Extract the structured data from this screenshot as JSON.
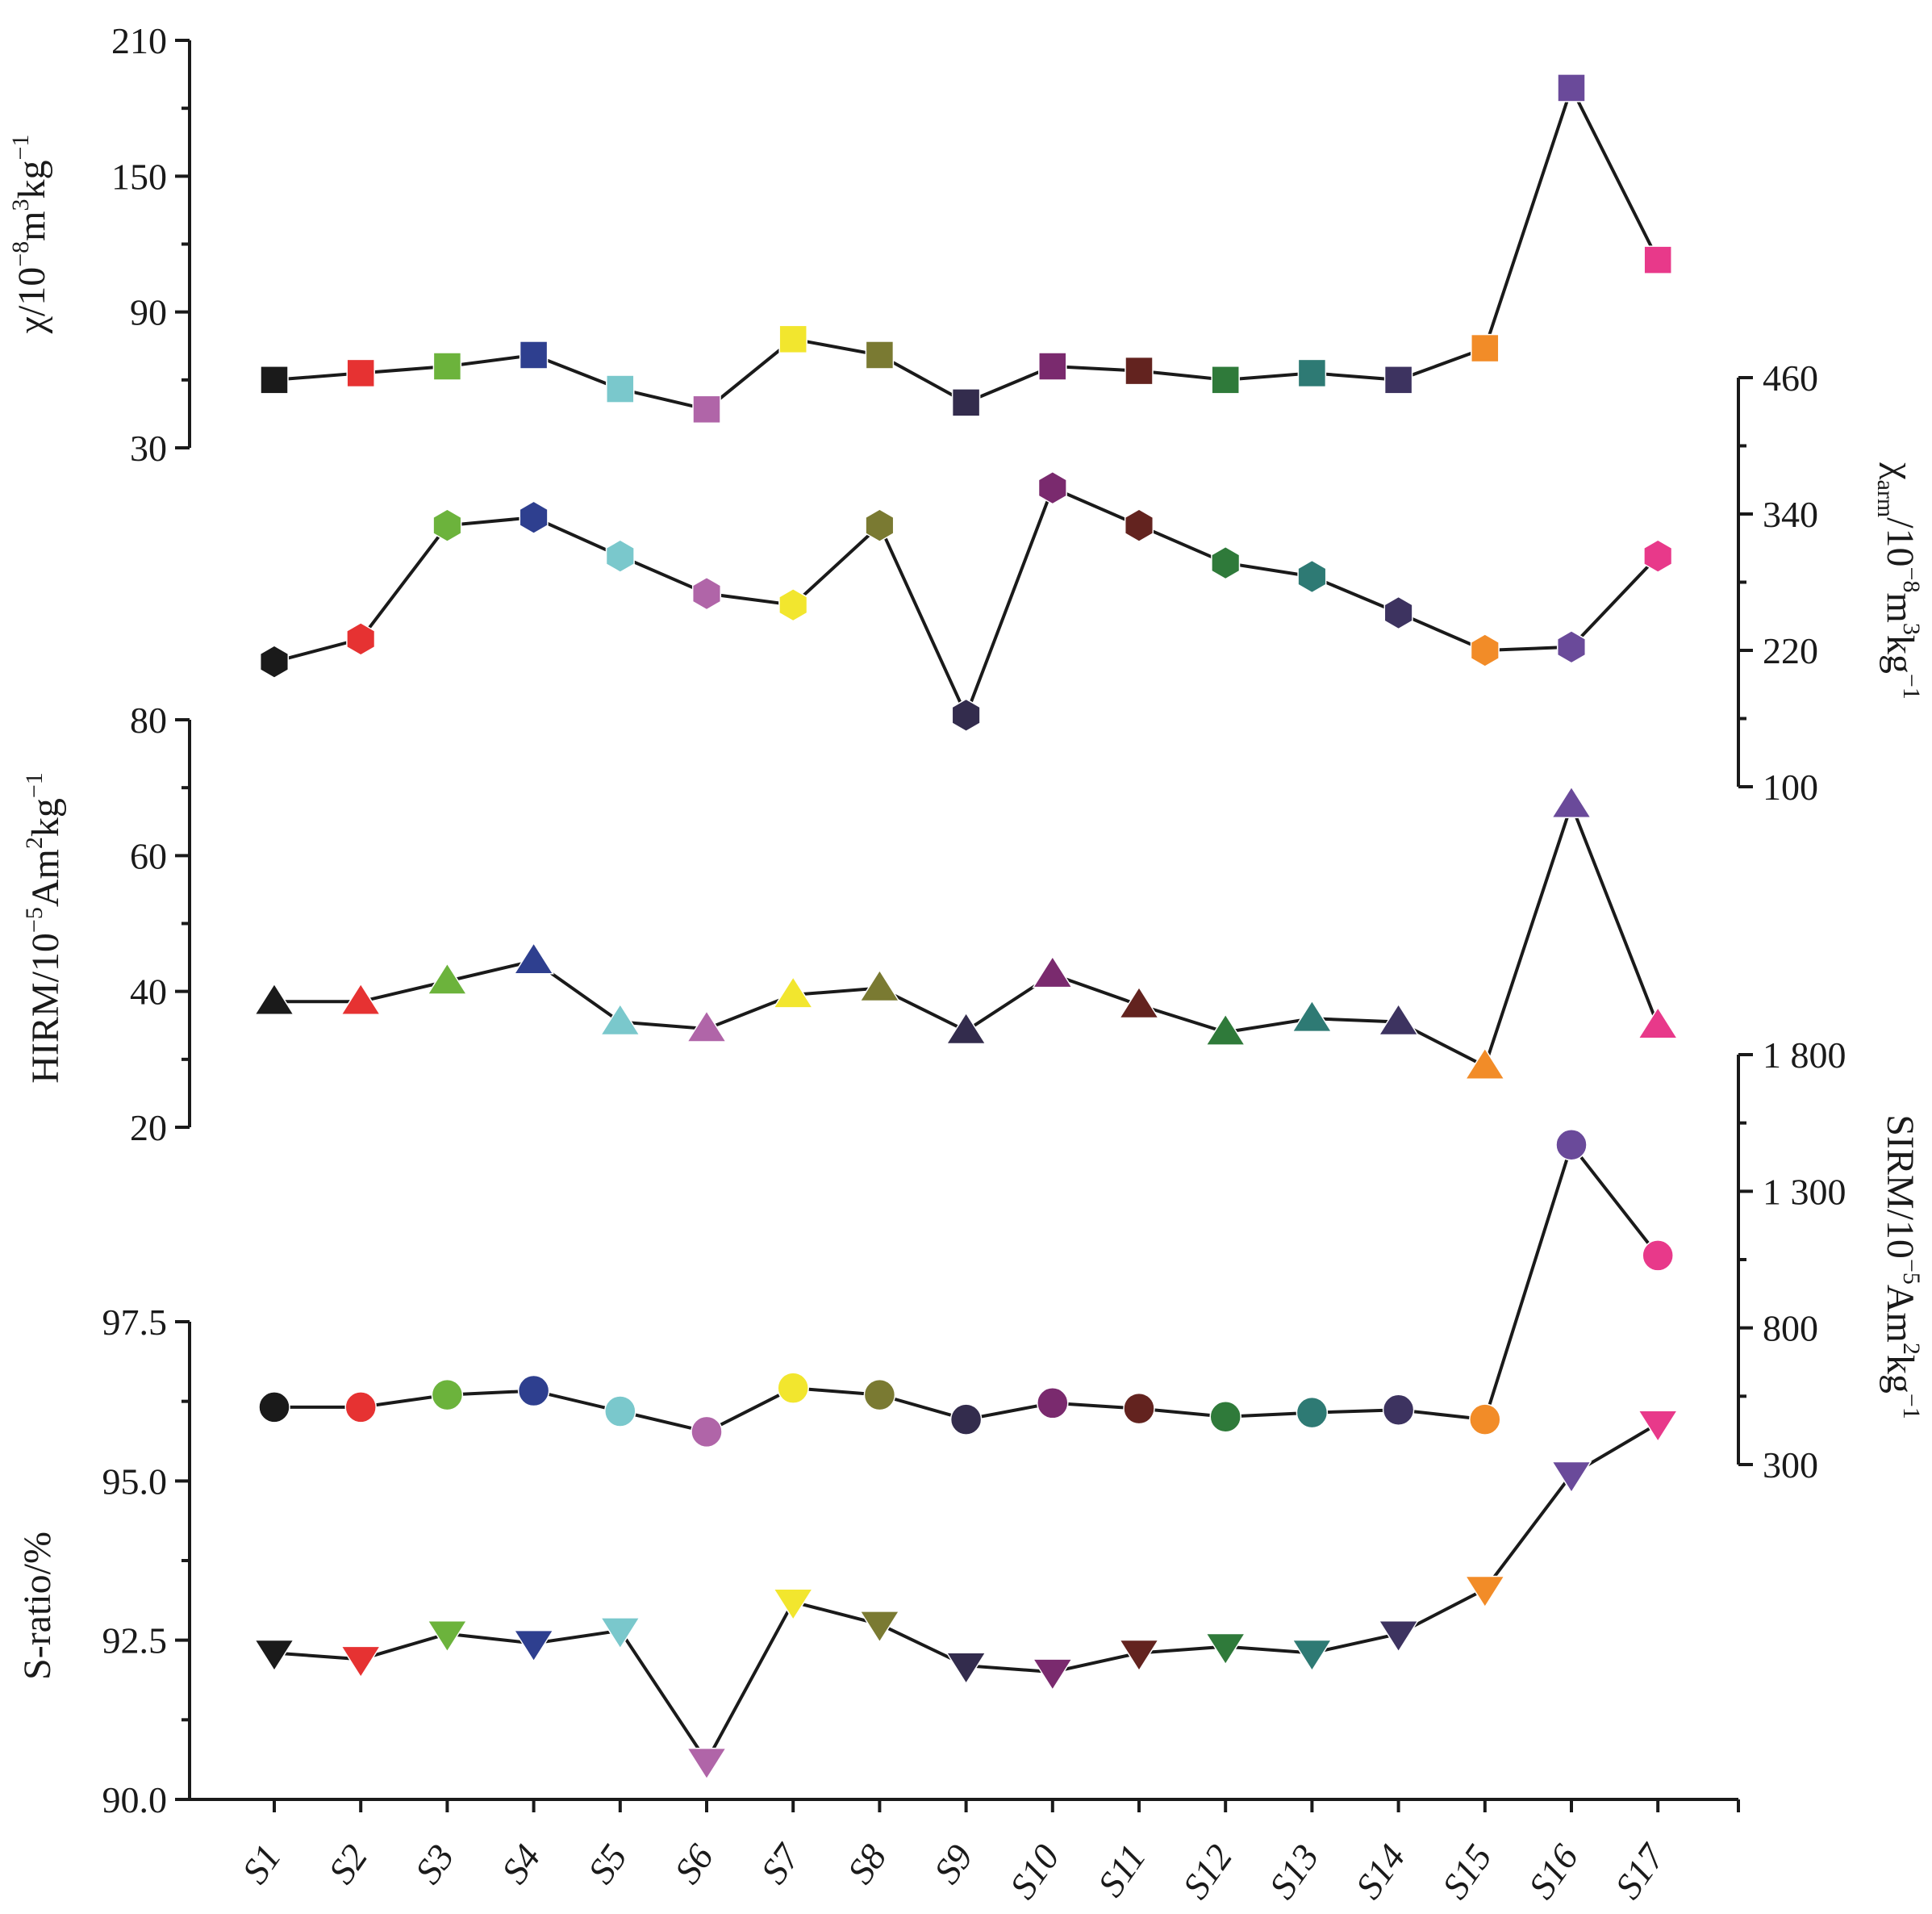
{
  "chart_data": {
    "type": "scatter",
    "categories": [
      "S1",
      "S2",
      "S3",
      "S4",
      "S5",
      "S6",
      "S7",
      "S8",
      "S9",
      "S10",
      "S11",
      "S12",
      "S13",
      "S14",
      "S15",
      "S16",
      "S17"
    ],
    "point_colors": [
      "#1a1a1a",
      "#e63232",
      "#6cb33c",
      "#2e3f8f",
      "#7ac8cc",
      "#b065a8",
      "#f2e62e",
      "#7a7a32",
      "#332c4d",
      "#7a2a6e",
      "#63231f",
      "#2f7a3a",
      "#2e7a74",
      "#3d3360",
      "#f28c28",
      "#6a4a9a",
      "#e8398a"
    ],
    "series": [
      {
        "key": "chi",
        "name": "χ",
        "axis_title": {
          "main": "χ/10",
          "sup1": "−8",
          "mid": "m",
          "sup2": "3",
          "end": "kg",
          "sup3": "−1"
        },
        "axis_side": "left",
        "ylim": [
          30,
          210
        ],
        "ticks": [
          30,
          90,
          150,
          210
        ],
        "tick_labels": [
          "30",
          "90",
          "150",
          "210"
        ],
        "marker": "square",
        "values": [
          60,
          63,
          66,
          71,
          56,
          47,
          78,
          71,
          50,
          66,
          64,
          60,
          63,
          60,
          74,
          189,
          113
        ]
      },
      {
        "key": "chiarm",
        "name": "χarm",
        "axis_title": {
          "main": "χ",
          "sub": "arm",
          "mid": "/10",
          "sup1": "−8",
          "mid2": "m",
          "sup2": "3",
          "end": "kg",
          "sup3": "−1"
        },
        "axis_side": "right",
        "ylim": [
          100,
          460
        ],
        "ticks": [
          100,
          220,
          340,
          460
        ],
        "tick_labels": [
          "100",
          "220",
          "340",
          "460"
        ],
        "marker": "hexagon",
        "values": [
          210,
          230,
          330,
          337,
          303,
          270,
          260,
          330,
          163,
          363,
          330,
          297,
          285,
          253,
          220,
          223,
          303
        ]
      },
      {
        "key": "hirm",
        "name": "HIRM",
        "axis_title": {
          "main": "HIRM/10",
          "sup1": "−5",
          "mid": "Am",
          "sup2": "2",
          "end": "kg",
          "sup3": "−1"
        },
        "axis_side": "left",
        "ylim": [
          20,
          80
        ],
        "ticks": [
          20,
          40,
          60,
          80
        ],
        "tick_labels": [
          "20",
          "40",
          "60",
          "80"
        ],
        "marker": "triangle-up",
        "values": [
          38.5,
          38.5,
          41.5,
          44.5,
          35.5,
          34.5,
          39.5,
          40.5,
          34.2,
          42.5,
          38,
          34,
          36,
          35.5,
          29,
          67.5,
          35
        ]
      },
      {
        "key": "sirm",
        "name": "SIRM",
        "axis_title": {
          "main": "SIRM/10",
          "sup1": "−5",
          "mid": "Am",
          "sup2": "2",
          "end": "kg",
          "sup3": "−1"
        },
        "axis_side": "right",
        "ylim": [
          300,
          1800
        ],
        "ticks": [
          300,
          800,
          1300,
          1800
        ],
        "tick_labels": [
          "300",
          "800",
          "1 300",
          "1 800"
        ],
        "marker": "circle",
        "values": [
          510,
          510,
          555,
          570,
          495,
          420,
          580,
          555,
          465,
          525,
          505,
          475,
          490,
          500,
          465,
          1470,
          1065
        ]
      },
      {
        "key": "sratio",
        "name": "S-ratio",
        "axis_title": {
          "main": "S-ratio/%"
        },
        "axis_side": "left",
        "ylim": [
          90.0,
          97.5
        ],
        "ticks": [
          90.0,
          92.5,
          95.0,
          97.5
        ],
        "tick_labels": [
          "90.0",
          "92.5",
          "95.0",
          "97.5"
        ],
        "marker": "triangle-down",
        "values": [
          92.3,
          92.2,
          92.6,
          92.45,
          92.65,
          90.6,
          93.1,
          92.75,
          92.1,
          92.0,
          92.3,
          92.4,
          92.3,
          92.6,
          93.3,
          95.1,
          95.9
        ]
      }
    ],
    "xlabel": "",
    "grid": false,
    "legend": "none"
  }
}
